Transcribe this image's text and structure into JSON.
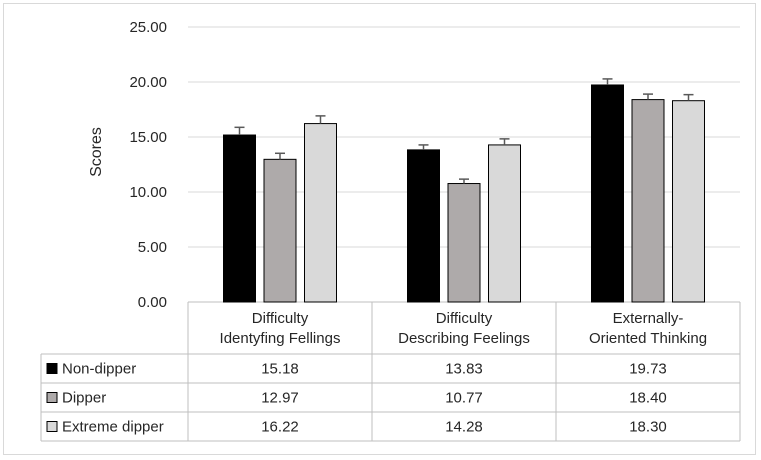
{
  "chart_data": {
    "type": "bar",
    "title": "",
    "xlabel": "",
    "ylabel": "Scores",
    "ylim": [
      0,
      25
    ],
    "yticks": [
      "0.00",
      "5.00",
      "10.00",
      "15.00",
      "20.00",
      "25.00"
    ],
    "grid": true,
    "legend_placement": "data-table-left",
    "categories": [
      [
        "Difficulty",
        "Identyfing Fellings"
      ],
      [
        "Difficulty",
        "Describing Feelings"
      ],
      [
        "Externally-",
        "Oriented Thinking"
      ]
    ],
    "series": [
      {
        "name": "Non-dipper",
        "values": [
          15.18,
          13.83,
          19.73
        ],
        "labels": [
          "15.18",
          "13.83",
          "19.73"
        ],
        "error": [
          0.7,
          0.45,
          0.55
        ],
        "color": "#000000"
      },
      {
        "name": "Dipper",
        "values": [
          12.97,
          10.77,
          18.4
        ],
        "labels": [
          "12.97",
          "10.77",
          "18.40"
        ],
        "error": [
          0.55,
          0.4,
          0.5
        ],
        "color": "#aeaaaa"
      },
      {
        "name": "Extreme dipper",
        "values": [
          16.22,
          14.28,
          18.3
        ],
        "labels": [
          "16.22",
          "14.28",
          "18.30"
        ],
        "error": [
          0.7,
          0.55,
          0.55
        ],
        "color": "#d9d9d9"
      }
    ]
  }
}
